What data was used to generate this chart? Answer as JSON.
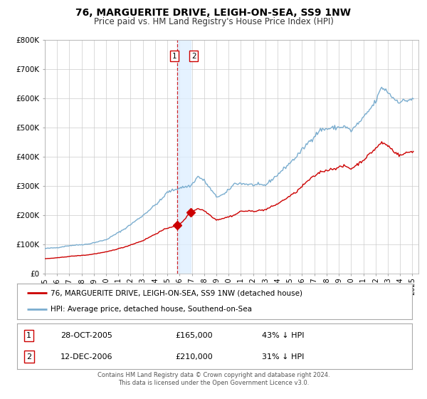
{
  "title": "76, MARGUERITE DRIVE, LEIGH-ON-SEA, SS9 1NW",
  "subtitle": "Price paid vs. HM Land Registry's House Price Index (HPI)",
  "red_label": "76, MARGUERITE DRIVE, LEIGH-ON-SEA, SS9 1NW (detached house)",
  "blue_label": "HPI: Average price, detached house, Southend-on-Sea",
  "transaction1_year": 2005.83,
  "transaction1_price": 165000,
  "transaction2_year": 2006.92,
  "transaction2_price": 210000,
  "footer1": "Contains HM Land Registry data © Crown copyright and database right 2024.",
  "footer2": "This data is licensed under the Open Government Licence v3.0.",
  "red_color": "#cc0000",
  "blue_color": "#7aadcf",
  "background_color": "#ffffff",
  "grid_color": "#cccccc",
  "legend_table": [
    {
      "num": "1",
      "date": "28-OCT-2005",
      "price": "£165,000",
      "pct": "43% ↓ HPI"
    },
    {
      "num": "2",
      "date": "12-DEC-2006",
      "price": "£210,000",
      "pct": "31% ↓ HPI"
    }
  ],
  "ylim": [
    0,
    800000
  ],
  "ytick_vals": [
    0,
    100000,
    200000,
    300000,
    400000,
    500000,
    600000,
    700000,
    800000
  ],
  "ytick_labels": [
    "£0",
    "£100K",
    "£200K",
    "£300K",
    "£400K",
    "£500K",
    "£600K",
    "£700K",
    "£800K"
  ],
  "xlim_start": 1995.0,
  "xlim_end": 2025.5,
  "hpi_anchors": {
    "1995.0": 85000,
    "1996.0": 88000,
    "1997.0": 95000,
    "1998.5": 100000,
    "2000.0": 115000,
    "2001.5": 152000,
    "2003.0": 198000,
    "2004.5": 252000,
    "2005.0": 278000,
    "2005.83": 290000,
    "2006.0": 293000,
    "2006.92": 300000,
    "2007.5": 332000,
    "2008.0": 318000,
    "2009.0": 262000,
    "2009.7": 272000,
    "2010.5": 308000,
    "2011.0": 308000,
    "2012.0": 303000,
    "2013.0": 302000,
    "2014.0": 338000,
    "2015.5": 398000,
    "2016.5": 448000,
    "2017.5": 492000,
    "2018.5": 498000,
    "2019.5": 503000,
    "2020.0": 488000,
    "2021.0": 532000,
    "2022.0": 588000,
    "2022.5": 638000,
    "2023.0": 622000,
    "2023.5": 598000,
    "2024.0": 588000,
    "2024.5": 592000,
    "2025.0": 598000
  },
  "red_anchors": {
    "1995.0": 50000,
    "1996.0": 53000,
    "1997.0": 58000,
    "1998.5": 63000,
    "2000.0": 73000,
    "2001.5": 90000,
    "2003.0": 112000,
    "2004.5": 145000,
    "2005.0": 155000,
    "2005.83": 165000,
    "2006.0": 166000,
    "2006.92": 210000,
    "2007.5": 222000,
    "2008.0": 215000,
    "2009.0": 183000,
    "2009.7": 190000,
    "2010.5": 200000,
    "2011.0": 213000,
    "2012.0": 213000,
    "2013.0": 218000,
    "2014.0": 238000,
    "2015.5": 278000,
    "2016.5": 318000,
    "2017.5": 348000,
    "2018.0": 353000,
    "2018.5": 358000,
    "2019.5": 368000,
    "2020.0": 358000,
    "2021.0": 388000,
    "2022.0": 428000,
    "2022.5": 448000,
    "2023.0": 438000,
    "2023.5": 418000,
    "2024.0": 403000,
    "2024.5": 413000,
    "2025.0": 418000
  },
  "noise_seed": 42,
  "hpi_noise": 0.008,
  "red_noise": 0.006
}
